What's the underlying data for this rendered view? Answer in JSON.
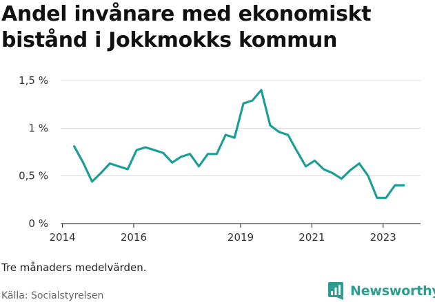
{
  "chart_data": {
    "type": "line",
    "title": "Andel invånare med ekonomiskt bistånd i Jokkmokks kommun",
    "xlabel": "",
    "ylabel": "",
    "x_ticks": [
      "2014",
      "2016",
      "2019",
      "2021",
      "2023"
    ],
    "x_tick_values": [
      2014.0,
      2016.0,
      2019.0,
      2021.0,
      2023.0
    ],
    "y_ticks": [
      "0 %",
      "0,5 %",
      "1 %",
      "1,5 %"
    ],
    "y_tick_values": [
      0,
      0.5,
      1.0,
      1.5
    ],
    "xlim": [
      2013.95,
      2024.05
    ],
    "ylim": [
      0,
      1.5
    ],
    "grid": true,
    "line_color": "#1a9e96",
    "series": [
      {
        "x": [
          2014.33,
          2014.58,
          2014.83,
          2015.08,
          2015.33,
          2015.83,
          2016.08,
          2016.33,
          2016.58,
          2016.83,
          2017.08,
          2017.33,
          2017.58,
          2017.83,
          2018.08,
          2018.33,
          2018.58,
          2018.83,
          2019.08,
          2019.33,
          2019.58,
          2019.83,
          2020.08,
          2020.33,
          2020.58,
          2020.83,
          2021.08,
          2021.33,
          2021.58,
          2021.83,
          2022.08,
          2022.33,
          2022.58,
          2022.83,
          2023.08,
          2023.33,
          2023.58
        ],
        "values": [
          0.81,
          0.64,
          0.44,
          0.53,
          0.63,
          0.57,
          0.77,
          0.8,
          0.77,
          0.74,
          0.64,
          0.7,
          0.73,
          0.6,
          0.73,
          0.73,
          0.93,
          0.9,
          1.26,
          1.29,
          1.4,
          1.03,
          0.96,
          0.93,
          0.76,
          0.6,
          0.66,
          0.57,
          0.53,
          0.47,
          0.56,
          0.63,
          0.5,
          0.27,
          0.27,
          0.4,
          0.4
        ]
      }
    ]
  },
  "note": "Tre månaders medelvärden.",
  "source": "Källa: Socialstyrelsen",
  "brand": {
    "name": "Newsworthy",
    "color": "#2a9d8f",
    "icon": "newsworthy-logo-icon"
  }
}
